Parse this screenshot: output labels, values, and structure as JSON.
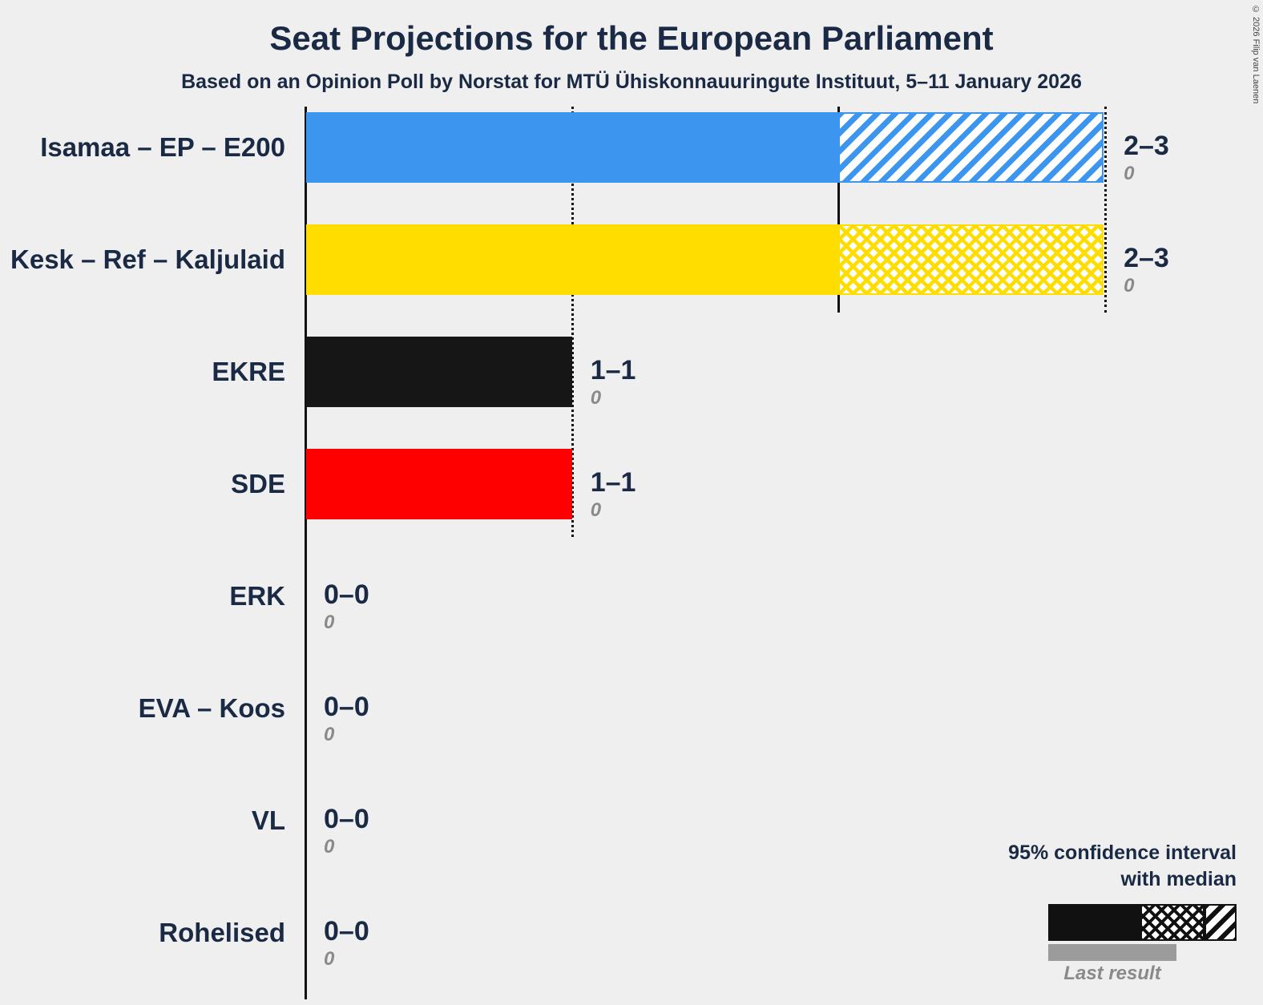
{
  "title": "Seat Projections for the European Parliament",
  "subtitle": "Based on an Opinion Poll by Norstat for MTÜ Ühiskonnauuringute Instituut, 5–11 January 2026",
  "copyright": "© 2026 Filip van Laenen",
  "legend": {
    "line1": "95% confidence interval",
    "line2": "with median",
    "last_result": "Last result"
  },
  "colors": {
    "background": "#EFEFEF",
    "text": "#1A2A44",
    "axis": "#111111",
    "muted": "#8A8A8A",
    "last_result_bar": "#9B9B9B"
  },
  "chart_data": {
    "type": "bar",
    "orientation": "horizontal",
    "title": "Seat Projections for the European Parliament",
    "x_axis": {
      "min": 0,
      "max": 3,
      "unit": "seats",
      "gridlines": false
    },
    "legend_position": "bottom-right",
    "series": [
      {
        "label": "Isamaa – EP – E200",
        "ci_low": 2,
        "median": 2,
        "ci_high": 3,
        "last_result": 0,
        "value_label": "2–3",
        "last_result_label": "0",
        "color": "#3C96F0",
        "hatch": "diagonal"
      },
      {
        "label": "Kesk – Ref – Kaljulaid",
        "ci_low": 2,
        "median": 2,
        "ci_high": 3,
        "last_result": 0,
        "value_label": "2–3",
        "last_result_label": "0",
        "color": "#FFDD00",
        "hatch": "cross"
      },
      {
        "label": "EKRE",
        "ci_low": 1,
        "median": 1,
        "ci_high": 1,
        "last_result": 0,
        "value_label": "1–1",
        "last_result_label": "0",
        "color": "#161616",
        "hatch": "none"
      },
      {
        "label": "SDE",
        "ci_low": 1,
        "median": 1,
        "ci_high": 1,
        "last_result": 0,
        "value_label": "1–1",
        "last_result_label": "0",
        "color": "#FF0000",
        "hatch": "none"
      },
      {
        "label": "ERK",
        "ci_low": 0,
        "median": 0,
        "ci_high": 0,
        "last_result": 0,
        "value_label": "0–0",
        "last_result_label": "0",
        "color": "#161616",
        "hatch": "none"
      },
      {
        "label": "EVA – Koos",
        "ci_low": 0,
        "median": 0,
        "ci_high": 0,
        "last_result": 0,
        "value_label": "0–0",
        "last_result_label": "0",
        "color": "#161616",
        "hatch": "none"
      },
      {
        "label": "VL",
        "ci_low": 0,
        "median": 0,
        "ci_high": 0,
        "last_result": 0,
        "value_label": "0–0",
        "last_result_label": "0",
        "color": "#161616",
        "hatch": "none"
      },
      {
        "label": "Rohelised",
        "ci_low": 0,
        "median": 0,
        "ci_high": 0,
        "last_result": 0,
        "value_label": "0–0",
        "last_result_label": "0",
        "color": "#161616",
        "hatch": "none"
      }
    ]
  }
}
